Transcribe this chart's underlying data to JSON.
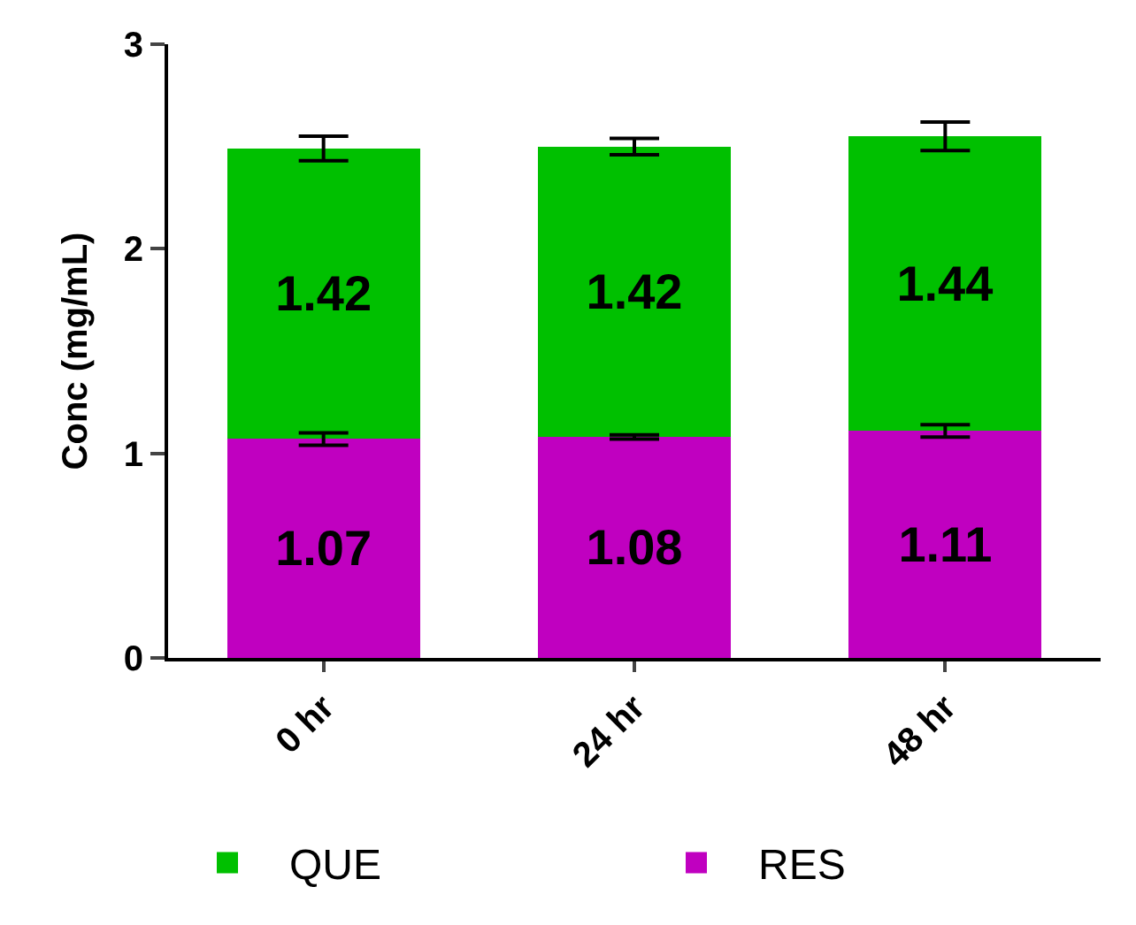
{
  "chart_data": {
    "type": "bar",
    "stacked": true,
    "ylabel": "Conc (mg/mL)",
    "categories": [
      "0 hr",
      "24 hr",
      "48 hr"
    ],
    "series": [
      {
        "name": "RES",
        "color": "#c000c0",
        "values": [
          1.07,
          1.08,
          1.11
        ],
        "errors": [
          0.03,
          0.01,
          0.03
        ]
      },
      {
        "name": "QUE",
        "color": "#00c000",
        "values": [
          1.42,
          1.42,
          1.44
        ],
        "errors": [
          0.06,
          0.04,
          0.07
        ]
      }
    ],
    "ylim": [
      0,
      3
    ],
    "yticks": [
      0,
      1,
      2,
      3
    ],
    "legend": "bottom",
    "data_labels": true
  }
}
